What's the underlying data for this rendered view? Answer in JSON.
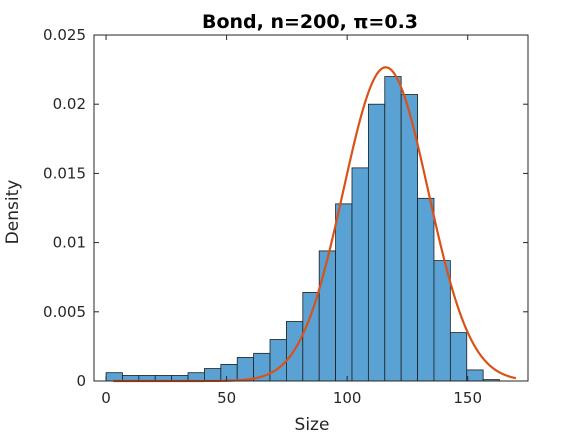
{
  "chart_data": {
    "type": "bar",
    "title": "Bond, n=200, π=0.3",
    "xlabel": "Size",
    "ylabel": "Density",
    "xlim": [
      -5,
      175
    ],
    "ylim": [
      0,
      0.025
    ],
    "xticks": [
      0,
      50,
      100,
      150
    ],
    "yticks": [
      0,
      0.005,
      0.01,
      0.015,
      0.02,
      0.025
    ],
    "ytick_labels": [
      "0",
      "0.005",
      "0.01",
      "0.015",
      "0.02",
      "0.025"
    ],
    "grid": false,
    "bin_width": 6.8,
    "bin_start": 0,
    "histogram_density": [
      0.0006,
      0.0004,
      0.0004,
      0.0004,
      0.0004,
      0.0006,
      0.0009,
      0.0012,
      0.0017,
      0.002,
      0.003,
      0.0043,
      0.0064,
      0.0094,
      0.0128,
      0.0154,
      0.02,
      0.022,
      0.0207,
      0.0132,
      0.0087,
      0.0035,
      0.0008,
      0.0001
    ],
    "fit_curve": {
      "type": "normal",
      "mean": 116,
      "sd": 17.6,
      "x_range": [
        3,
        170
      ]
    },
    "colors": {
      "bar_fill": "#5aa1d4",
      "bar_edge": "#1f1f1f",
      "curve": "#d95319",
      "axes": "#262626"
    }
  }
}
